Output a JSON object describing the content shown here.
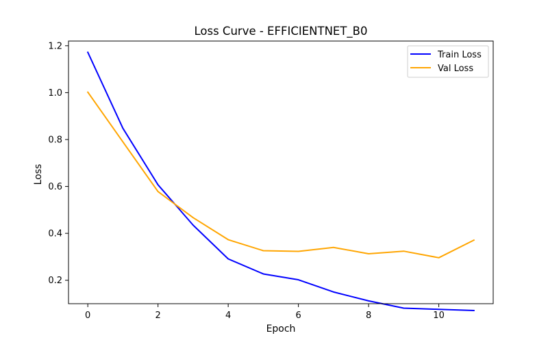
{
  "chart_data": {
    "type": "line",
    "title": "Loss Curve - EFFICIENTNET_B0",
    "xlabel": "Epoch",
    "ylabel": "Loss",
    "xlim": [
      -0.55,
      11.55
    ],
    "ylim": [
      0.1,
      1.22
    ],
    "x_ticks": [
      0,
      2,
      4,
      6,
      8,
      10
    ],
    "y_ticks": [
      0.2,
      0.4,
      0.6,
      0.8,
      1.0,
      1.2
    ],
    "x": [
      0,
      1,
      2,
      3,
      4,
      5,
      6,
      7,
      8,
      9,
      10,
      11
    ],
    "series": [
      {
        "name": "Train Loss",
        "color": "#0000ff",
        "values": [
          1.172,
          0.848,
          0.607,
          0.435,
          0.291,
          0.227,
          0.202,
          0.15,
          0.112,
          0.081,
          0.076,
          0.071
        ]
      },
      {
        "name": "Val Loss",
        "color": "#ffa500",
        "values": [
          1.002,
          0.79,
          0.578,
          0.467,
          0.373,
          0.326,
          0.323,
          0.34,
          0.313,
          0.324,
          0.296,
          0.371
        ]
      }
    ],
    "legend_position": "upper right",
    "grid": false
  }
}
